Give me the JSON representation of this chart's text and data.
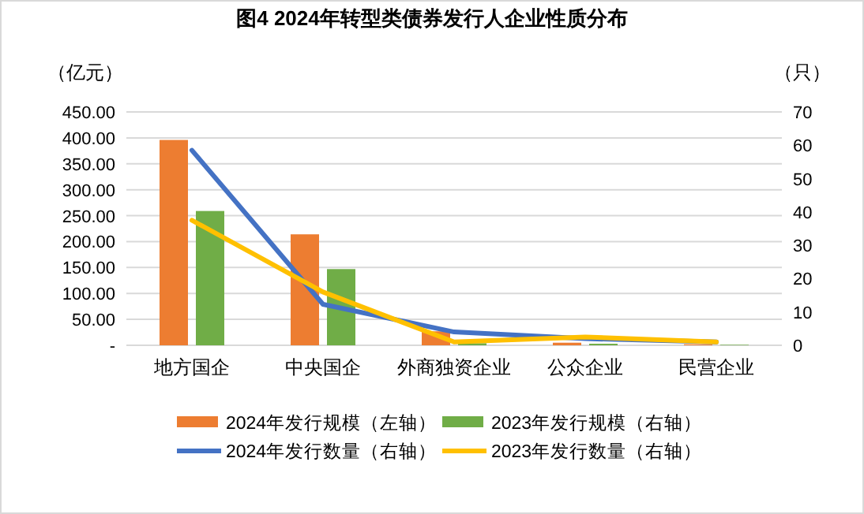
{
  "chart_data": {
    "type": "bar",
    "title": "图4 2024年转型类债券发行人企业性质分布",
    "ylabel": "（亿元）",
    "y2label": "（只）",
    "categories": [
      "地方国企",
      "中央国企",
      "外商独资企业",
      "公众企业",
      "民营企业"
    ],
    "series": [
      {
        "name": "2024年发行规模（左轴）",
        "color": "#ed7d31",
        "values": [
          396,
          214,
          27,
          5,
          2
        ]
      },
      {
        "name": "2023年发行规模（右轴）",
        "color": "#70ad47",
        "values": [
          259,
          147,
          4,
          3,
          1
        ]
      },
      {
        "name": "2024年发行数量（右轴）",
        "type": "line",
        "axis": "y2",
        "color": "#4472c4",
        "values": [
          58.5,
          12.3,
          4,
          2,
          1
        ]
      },
      {
        "name": "2023年发行数量（右轴）",
        "type": "line",
        "axis": "y2",
        "color": "#ffc000",
        "values": [
          37.5,
          16,
          1,
          2.5,
          1
        ]
      }
    ],
    "ylim": [
      0,
      450
    ],
    "yticks": [
      {
        "value": 0,
        "label": "-"
      },
      {
        "value": 50,
        "label": "50.00"
      },
      {
        "value": 100,
        "label": "100.00"
      },
      {
        "value": 150,
        "label": "150.00"
      },
      {
        "value": 200,
        "label": "200.00"
      },
      {
        "value": 250,
        "label": "250.00"
      },
      {
        "value": 300,
        "label": "300.00"
      },
      {
        "value": 350,
        "label": "350.00"
      },
      {
        "value": 400,
        "label": "400.00"
      },
      {
        "value": 450,
        "label": "450.00"
      }
    ],
    "y2lim": [
      0,
      70
    ],
    "y2ticks": [
      0,
      10,
      20,
      30,
      40,
      50,
      60,
      70
    ],
    "grid": "y",
    "legend": "bottom"
  }
}
